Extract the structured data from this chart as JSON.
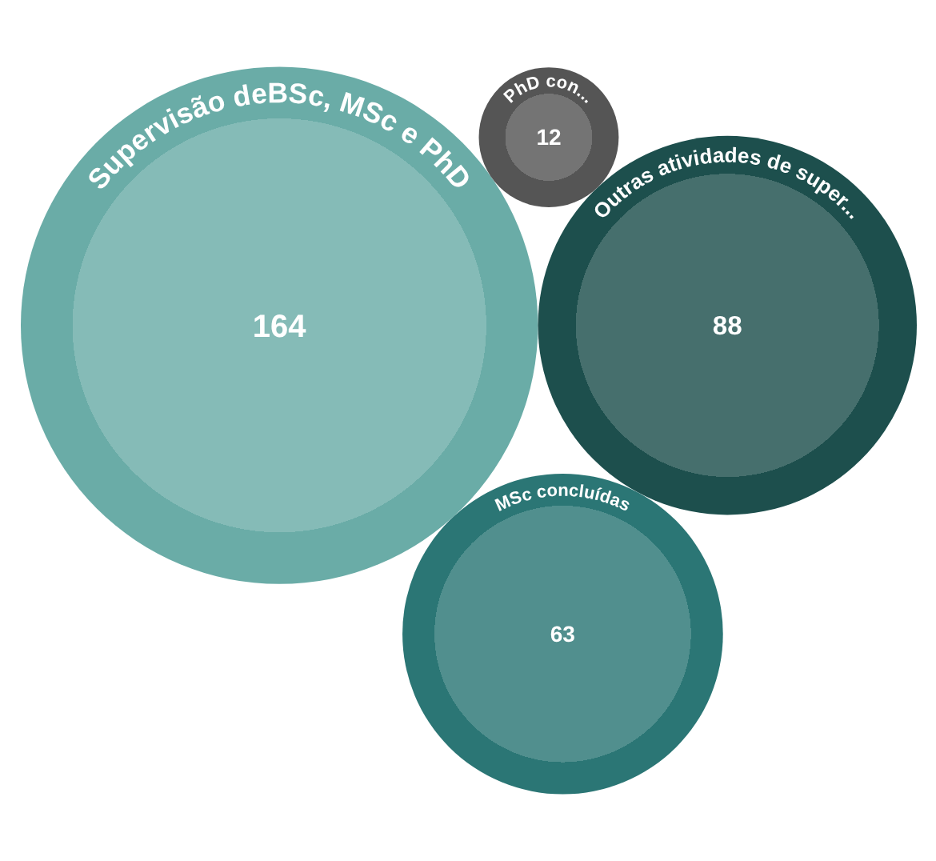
{
  "chart_data": {
    "type": "other",
    "categories": [
      "Supervisão deBSc, MSc e PhD",
      "Outras atividades de super...",
      "MSc concluídas",
      "PhD con..."
    ],
    "values": [
      164,
      88,
      63,
      12
    ],
    "colors": [
      "#6aaca7",
      "#1d4f4d",
      "#2b7675",
      "#555555"
    ],
    "data_labels": true
  }
}
